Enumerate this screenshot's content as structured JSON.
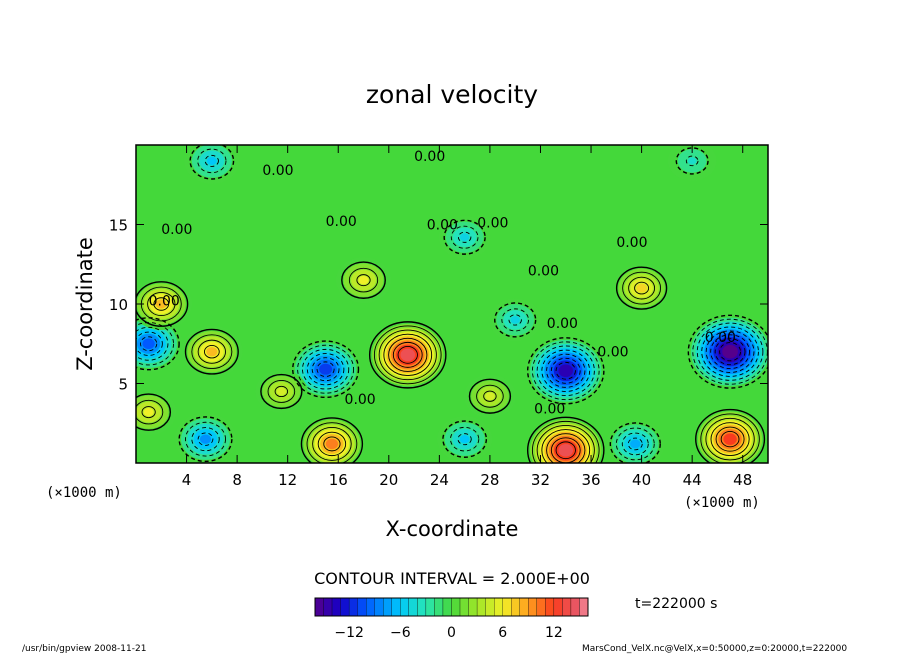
{
  "chart_data": {
    "type": "heatmap",
    "title": "zonal velocity",
    "xlabel": "X-coordinate",
    "ylabel": "Z-coordinate",
    "x_unit_left": "(×1000 m)",
    "x_unit_right": "(×1000 m)",
    "xlim": [
      0,
      50
    ],
    "ylim": [
      0,
      20
    ],
    "xticks": [
      4,
      8,
      12,
      16,
      20,
      24,
      28,
      32,
      36,
      40,
      44,
      48
    ],
    "yticks": [
      5,
      10,
      15
    ],
    "contour_interval_text": "CONTOUR INTERVAL = 2.000E+00",
    "time_label": "t=222000 s",
    "zero_label": "0.00",
    "colorbar": {
      "min": -16,
      "max": 16,
      "ticks": [
        -12,
        -6,
        0,
        6,
        12
      ]
    },
    "features": [
      {
        "x": 1,
        "z": 7.5,
        "value": -10
      },
      {
        "x": 6,
        "z": 7.0,
        "value": 8
      },
      {
        "x": 5.5,
        "z": 1.5,
        "value": -8
      },
      {
        "x": 1,
        "z": 3.2,
        "value": 6
      },
      {
        "x": 15,
        "z": 5.9,
        "value": -11
      },
      {
        "x": 21.5,
        "z": 6.8,
        "value": 14
      },
      {
        "x": 15.5,
        "z": 1.2,
        "value": 10
      },
      {
        "x": 26,
        "z": 1.5,
        "value": -6
      },
      {
        "x": 34,
        "z": 5.8,
        "value": -14
      },
      {
        "x": 34,
        "z": 0.8,
        "value": 14
      },
      {
        "x": 39.5,
        "z": 1.2,
        "value": -7
      },
      {
        "x": 47,
        "z": 7.0,
        "value": -16
      },
      {
        "x": 47,
        "z": 1.5,
        "value": 12
      },
      {
        "x": 11.5,
        "z": 4.5,
        "value": 5
      },
      {
        "x": 28,
        "z": 4.2,
        "value": 5
      },
      {
        "x": 2,
        "z": 10.0,
        "value": 8
      },
      {
        "x": 18,
        "z": 11.5,
        "value": 6
      },
      {
        "x": 40,
        "z": 11.0,
        "value": 7
      },
      {
        "x": 30,
        "z": 9.0,
        "value": -5
      },
      {
        "x": 26,
        "z": 14.2,
        "value": -5
      },
      {
        "x": 6,
        "z": 19.0,
        "value": -6
      },
      {
        "x": 44,
        "z": 19.0,
        "value": -4
      }
    ]
  },
  "footer": {
    "left": "/usr/bin/gpview   2008-11-21",
    "right": "MarsCond_VelX.nc@VelX,x=0:50000,z=0:20000,t=222000"
  }
}
